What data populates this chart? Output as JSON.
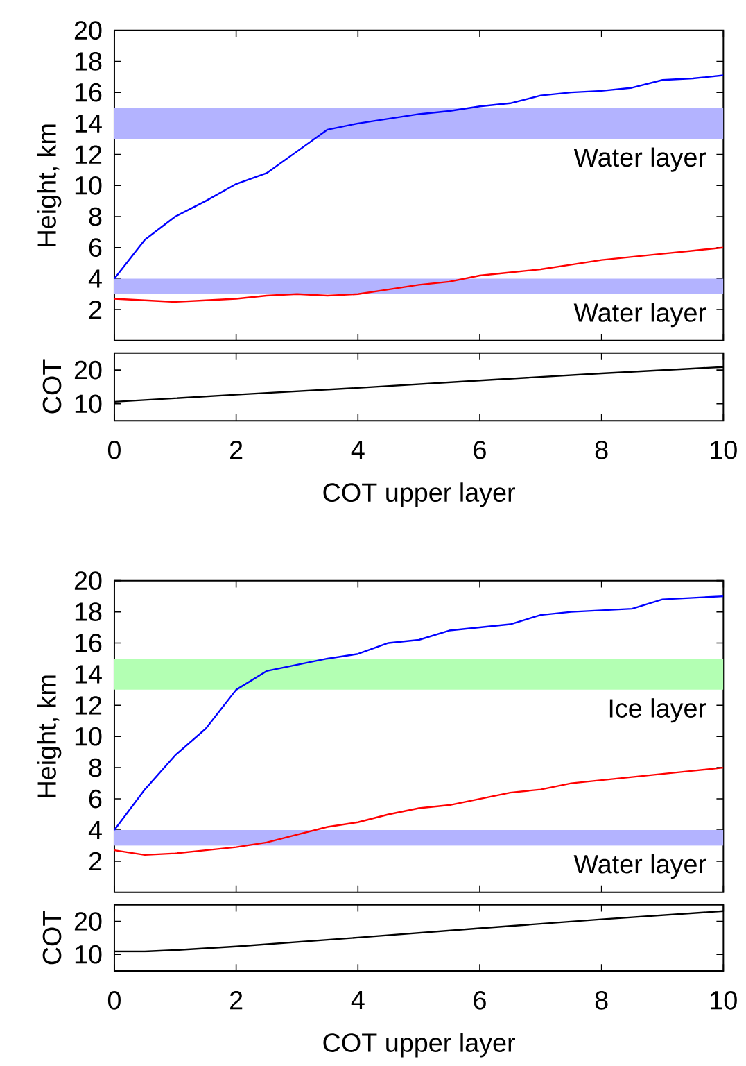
{
  "chart_data": [
    {
      "type": "line",
      "ylabel": "Height, km",
      "xlim": [
        0,
        10
      ],
      "ylim": [
        0,
        20
      ],
      "xticks": [
        0,
        2,
        4,
        6,
        8,
        10
      ],
      "yticks": [
        2,
        4,
        6,
        8,
        10,
        12,
        14,
        16,
        18,
        20
      ],
      "tick_labels": "y",
      "grid": false,
      "bands": [
        {
          "axis": "y",
          "from": 13,
          "to": 15,
          "label": "Water layer",
          "color": "#b3b3ff"
        },
        {
          "axis": "y",
          "from": 3,
          "to": 4,
          "label": "Water layer",
          "color": "#b3b3ff"
        }
      ],
      "series": [
        {
          "color": "#0000ff",
          "x": [
            0,
            0.5,
            1,
            1.5,
            2,
            2.5,
            3,
            3.5,
            4,
            4.5,
            5,
            5.5,
            6,
            6.5,
            7,
            7.5,
            8,
            8.5,
            9,
            9.5,
            10
          ],
          "values": [
            4,
            6.5,
            8,
            9,
            10.1,
            10.8,
            12.2,
            13.6,
            14.0,
            14.3,
            14.6,
            14.8,
            15.1,
            15.3,
            15.8,
            16.0,
            16.1,
            16.3,
            16.8,
            16.9,
            17.1
          ]
        },
        {
          "color": "#ff0000",
          "x": [
            0,
            0.5,
            1,
            1.5,
            2,
            2.5,
            3,
            3.5,
            4,
            4.5,
            5,
            5.5,
            6,
            6.5,
            7,
            7.5,
            8,
            8.5,
            9,
            9.5,
            10
          ],
          "values": [
            2.7,
            2.6,
            2.5,
            2.6,
            2.7,
            2.9,
            3.0,
            2.9,
            3.0,
            3.3,
            3.6,
            3.8,
            4.2,
            4.4,
            4.6,
            4.9,
            5.2,
            5.4,
            5.6,
            5.8,
            6.0
          ]
        }
      ]
    },
    {
      "type": "line",
      "ylabel": "COT",
      "xlabel": "COT upper layer",
      "xlim": [
        0,
        10
      ],
      "ylim": [
        5,
        25
      ],
      "xticks": [
        0,
        2,
        4,
        6,
        8,
        10
      ],
      "yticks": [
        10,
        20
      ],
      "grid": false,
      "series": [
        {
          "color": "#000000",
          "x": [
            0,
            2,
            4,
            6,
            8,
            10
          ],
          "values": [
            10.6,
            12.7,
            14.7,
            16.9,
            19.0,
            20.9
          ]
        }
      ]
    },
    {
      "type": "line",
      "ylabel": "Height, km",
      "xlim": [
        0,
        10
      ],
      "ylim": [
        0,
        20
      ],
      "xticks": [
        0,
        2,
        4,
        6,
        8,
        10
      ],
      "yticks": [
        2,
        4,
        6,
        8,
        10,
        12,
        14,
        16,
        18,
        20
      ],
      "tick_labels": "y",
      "grid": false,
      "bands": [
        {
          "axis": "y",
          "from": 13,
          "to": 15,
          "label": "Ice layer",
          "color": "#b3ffb3"
        },
        {
          "axis": "y",
          "from": 3,
          "to": 4,
          "label": "Water layer",
          "color": "#b3b3ff"
        }
      ],
      "series": [
        {
          "color": "#0000ff",
          "x": [
            0,
            0.5,
            1,
            1.5,
            2,
            2.5,
            3,
            3.5,
            4,
            4.5,
            5,
            5.5,
            6,
            6.5,
            7,
            7.5,
            8,
            8.5,
            9,
            9.5,
            10
          ],
          "values": [
            4,
            6.6,
            8.8,
            10.5,
            13.0,
            14.2,
            14.6,
            15.0,
            15.3,
            16.0,
            16.2,
            16.8,
            17.0,
            17.2,
            17.8,
            18.0,
            18.1,
            18.2,
            18.8,
            18.9,
            19.0
          ]
        },
        {
          "color": "#ff0000",
          "x": [
            0,
            0.5,
            1,
            1.5,
            2,
            2.5,
            3,
            3.5,
            4,
            4.5,
            5,
            5.5,
            6,
            6.5,
            7,
            7.5,
            8,
            8.5,
            9,
            9.5,
            10
          ],
          "values": [
            2.7,
            2.4,
            2.5,
            2.7,
            2.9,
            3.2,
            3.7,
            4.2,
            4.5,
            5.0,
            5.4,
            5.6,
            6.0,
            6.4,
            6.6,
            7.0,
            7.2,
            7.4,
            7.6,
            7.8,
            8.0
          ]
        }
      ]
    },
    {
      "type": "line",
      "ylabel": "COT",
      "xlabel": "COT upper layer",
      "xlim": [
        0,
        10
      ],
      "ylim": [
        5,
        25
      ],
      "xticks": [
        0,
        2,
        4,
        6,
        8,
        10
      ],
      "yticks": [
        10,
        20
      ],
      "grid": false,
      "series": [
        {
          "color": "#000000",
          "x": [
            0,
            0.5,
            1,
            2,
            4,
            6,
            8,
            10
          ],
          "values": [
            10.9,
            10.9,
            11.3,
            12.4,
            15.1,
            17.9,
            20.6,
            23.1
          ]
        }
      ]
    }
  ]
}
